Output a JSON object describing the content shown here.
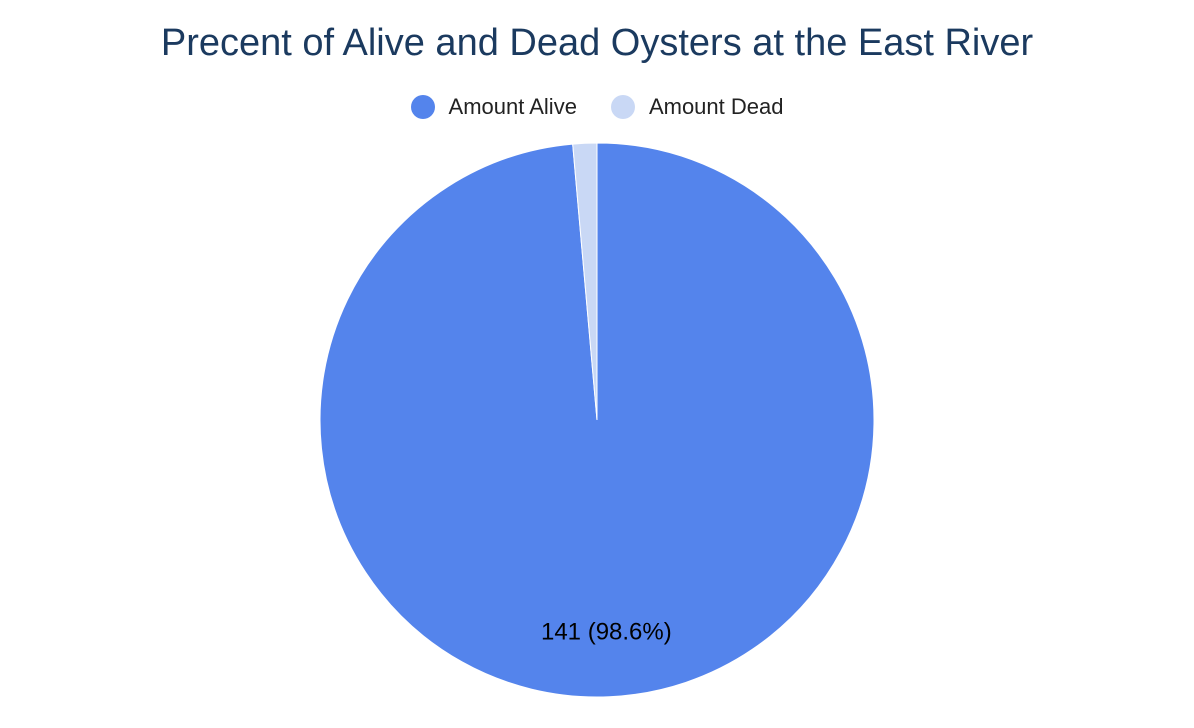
{
  "chart_data": {
    "type": "pie",
    "title": "Precent of Alive and Dead Oysters at the East River",
    "legend_position": "top",
    "slices": [
      {
        "name": "Amount Alive",
        "value": 141,
        "percent": 98.6,
        "color": "#5484ec",
        "label": "141 (98.6%)"
      },
      {
        "name": "Amount Dead",
        "value": 2,
        "percent": 1.4,
        "color": "#c9d8f5",
        "label": ""
      }
    ]
  }
}
